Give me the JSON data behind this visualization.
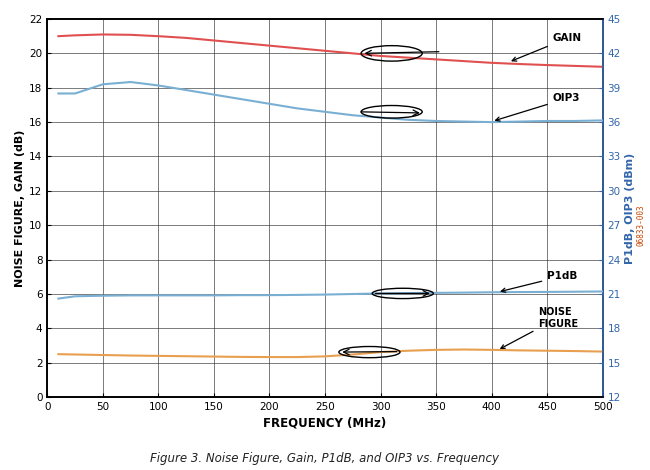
{
  "freq": [
    10,
    25,
    50,
    75,
    100,
    125,
    150,
    175,
    200,
    225,
    250,
    275,
    300,
    325,
    350,
    375,
    400,
    425,
    450,
    475,
    500
  ],
  "gain": [
    21.0,
    21.05,
    21.1,
    21.08,
    21.0,
    20.9,
    20.75,
    20.6,
    20.45,
    20.3,
    20.15,
    20.0,
    19.85,
    19.75,
    19.65,
    19.55,
    19.45,
    19.38,
    19.32,
    19.27,
    19.22
  ],
  "oip3_dbm": [
    38.5,
    38.5,
    39.3,
    39.5,
    39.2,
    38.8,
    38.4,
    38.0,
    37.6,
    37.2,
    36.9,
    36.6,
    36.4,
    36.2,
    36.1,
    36.05,
    36.0,
    36.05,
    36.1,
    36.1,
    36.15
  ],
  "p1db_dbm": [
    20.6,
    20.8,
    20.85,
    20.88,
    20.88,
    20.88,
    20.88,
    20.9,
    20.9,
    20.92,
    20.95,
    21.0,
    21.05,
    21.08,
    21.1,
    21.12,
    21.15,
    21.17,
    21.18,
    21.2,
    21.22
  ],
  "noise_figure": [
    2.5,
    2.48,
    2.45,
    2.42,
    2.4,
    2.38,
    2.36,
    2.34,
    2.33,
    2.33,
    2.37,
    2.48,
    2.62,
    2.7,
    2.75,
    2.77,
    2.75,
    2.72,
    2.7,
    2.68,
    2.65
  ],
  "gain_color": "#e05050",
  "oip3_color": "#7aafd4",
  "p1db_color": "#7aafd4",
  "nf_color": "#e8a050",
  "xlabel": "FREQUENCY (MHz)",
  "ylabel_left": "NOISE FIGURE, GAIN (dB)",
  "ylabel_right": "P1dB, OIP3 (dBm)",
  "xlim": [
    0,
    500
  ],
  "ylim_left": [
    0,
    22
  ],
  "ylim_right": [
    12,
    45
  ],
  "yticks_left": [
    0,
    2,
    4,
    6,
    8,
    10,
    12,
    14,
    16,
    18,
    20,
    22
  ],
  "yticks_right": [
    12,
    15,
    18,
    21,
    24,
    27,
    30,
    33,
    36,
    39,
    42,
    45
  ],
  "xticks": [
    0,
    50,
    100,
    150,
    200,
    250,
    300,
    350,
    400,
    450,
    500
  ],
  "caption": "Figure 3. Noise Figure, Gain, P1dB, and OIP3 vs. Frequency",
  "watermark": "06833-003",
  "bg_color": "#ffffff"
}
